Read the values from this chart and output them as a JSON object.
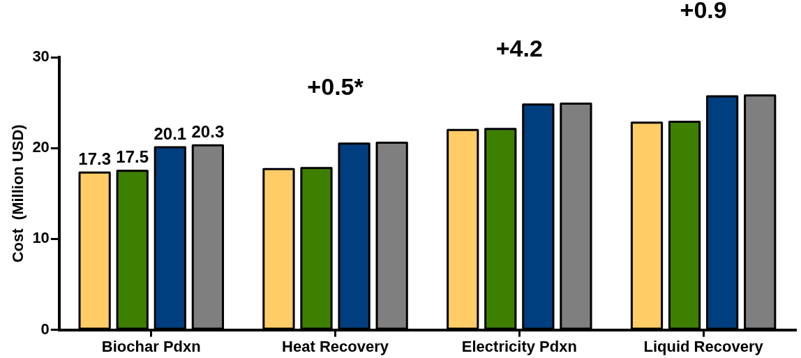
{
  "chart_data": {
    "type": "bar",
    "ylabel": "Cost  (Million USD)",
    "categories": [
      "Biochar Pdxn",
      "Heat Recovery",
      "Electricity Pdxn",
      "Liquid Recovery"
    ],
    "series": [
      {
        "color": "#ffcc66",
        "values": [
          17.3,
          17.7,
          22.0,
          22.8
        ],
        "value_labels": [
          "17.3",
          null,
          null,
          null
        ]
      },
      {
        "color": "#3f7f00",
        "values": [
          17.5,
          17.8,
          22.1,
          22.9
        ],
        "value_labels": [
          "17.5",
          null,
          null,
          null
        ]
      },
      {
        "color": "#003f7f",
        "values": [
          20.1,
          20.5,
          24.8,
          25.7
        ],
        "value_labels": [
          "20.1",
          null,
          null,
          null
        ]
      },
      {
        "color": "#7f7f7f",
        "values": [
          20.3,
          20.6,
          24.9,
          25.8
        ],
        "value_labels": [
          "20.3",
          null,
          null,
          null
        ]
      }
    ],
    "ylim": [
      0,
      30
    ],
    "yticks": [
      0,
      10,
      20,
      30
    ],
    "grid": false,
    "legend": false,
    "annotations": [
      "+0.5*",
      "+4.2",
      "+0.9"
    ]
  }
}
